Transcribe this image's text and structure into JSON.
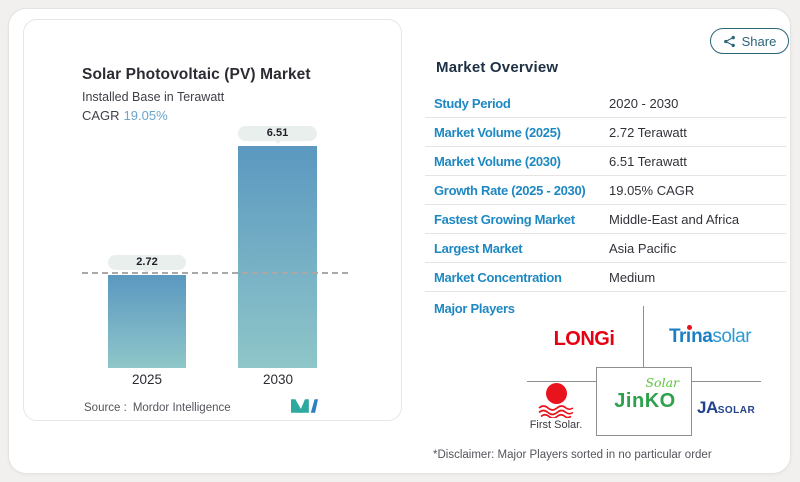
{
  "share_button": {
    "label": "Share",
    "icon": "share-nodes-icon",
    "color": "#2b6577"
  },
  "chart_panel": {
    "title": "Solar Photovoltaic (PV) Market",
    "subtitle": "Installed Base in Terawatt",
    "cagr_label": "CAGR",
    "cagr_value": "19.05%",
    "cagr_color": "#6aa5cb",
    "source_label": "Source :",
    "source_name": "Mordor Intelligence",
    "logo": "mordor-intelligence-logo"
  },
  "chart_data": {
    "type": "bar",
    "categories": [
      "2025",
      "2030"
    ],
    "values": [
      2.72,
      6.51
    ],
    "labels": [
      "2.72",
      "6.51"
    ],
    "title": "Solar Photovoltaic (PV) Market",
    "subtitle": "Installed Base in Terawatt",
    "ylabel": "Installed Base (Terawatt)",
    "ylim": [
      0,
      6.51
    ],
    "reference_line": {
      "value": 2.72,
      "style": "dashed"
    },
    "bar_gradient": [
      "#5b98c0",
      "#8fc6c9"
    ],
    "grid": false,
    "legend": false
  },
  "overview": {
    "heading": "Market Overview",
    "label_color": "#1e88c2",
    "rows": [
      {
        "label": "Study Period",
        "value": "2020 - 2030"
      },
      {
        "label": "Market Volume (2025)",
        "value": "2.72 Terawatt"
      },
      {
        "label": "Market Volume (2030)",
        "value": "6.51 Terawatt"
      },
      {
        "label": "Growth Rate (2025 - 2030)",
        "value": "19.05% CAGR"
      },
      {
        "label": "Fastest Growing Market",
        "value": "Middle-East and Africa"
      },
      {
        "label": "Largest Market",
        "value": "Asia Pacific"
      },
      {
        "label": "Market Concentration",
        "value": "Medium"
      }
    ],
    "major_players_label": "Major Players",
    "players": {
      "longi": {
        "text": "LONGi",
        "color": "#e50113"
      },
      "trina": {
        "pre": "Tr",
        "i": "ı",
        "rest": "na",
        "light": "solar",
        "color": "#1a7fc3"
      },
      "first_solar": {
        "text": "First Solar.",
        "color": "#e8131d"
      },
      "jinko": {
        "script": "Solar",
        "text": "JinKO",
        "color": "#2fa14d"
      },
      "ja_solar": {
        "bold": "JA",
        "small": "SOLAR",
        "color": "#24418e"
      }
    },
    "disclaimer": "*Disclaimer: Major Players sorted in no particular order"
  }
}
